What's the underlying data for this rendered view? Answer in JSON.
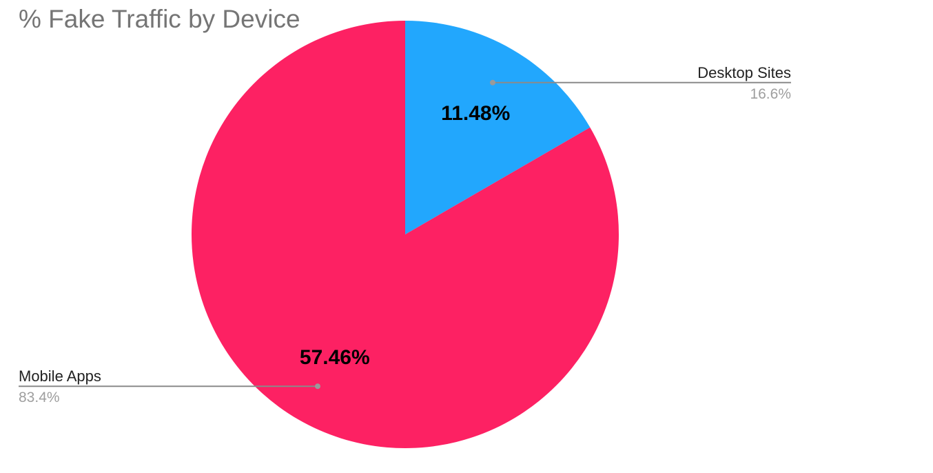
{
  "chart_data": {
    "type": "pie",
    "title": "% Fake Traffic by Device",
    "slices": [
      {
        "name": "Desktop Sites",
        "value": 11.48,
        "value_label": "11.48%",
        "share_label": "16.6%",
        "color": "#22a7fd"
      },
      {
        "name": "Mobile Apps",
        "value": 57.46,
        "value_label": "57.46%",
        "share_label": "83.4%",
        "color": "#fd2163"
      }
    ],
    "legend": "callouts beside slices"
  }
}
